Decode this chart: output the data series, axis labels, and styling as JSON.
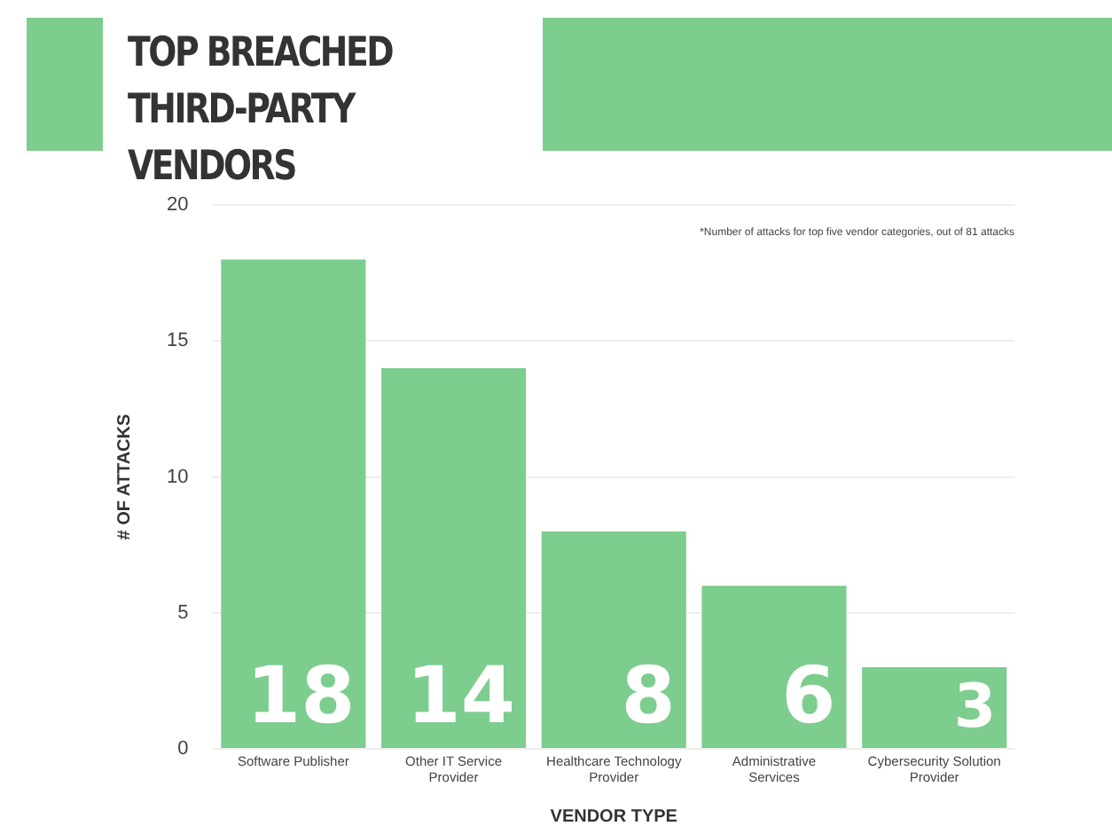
{
  "chart_data": {
    "type": "bar",
    "title": "TOP BREACHED THIRD-PARTY VENDORS",
    "xlabel": "VENDOR TYPE",
    "ylabel": "# OF ATTACKS",
    "categories": [
      "Software Publisher",
      "Other IT Service Provider",
      "Healthcare Technology Provider",
      "Administrative Services",
      "Cybersecurity Solution Provider"
    ],
    "values": [
      18,
      14,
      8,
      6,
      3
    ],
    "color": "#7dcd8e",
    "data_labels": true,
    "ylim": [
      0,
      20
    ],
    "yticks": [
      0,
      5,
      10,
      15,
      20
    ],
    "grid": "y",
    "annotations": [
      "*Number of attacks for top five vendor categories, out of 81 attacks"
    ]
  }
}
